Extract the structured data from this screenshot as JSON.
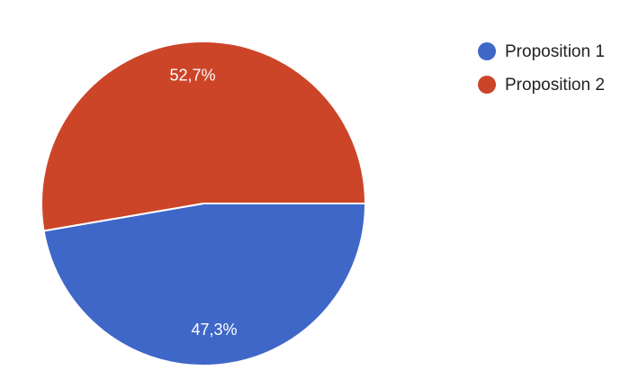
{
  "chart_data": {
    "type": "pie",
    "categories": [
      "Proposition 1",
      "Proposition 2"
    ],
    "values": [
      47.3,
      52.7
    ],
    "value_labels": [
      "47,3%",
      "52,7%"
    ],
    "colors": [
      "#3f67c8",
      "#cc4528"
    ],
    "legend": "top-right"
  }
}
